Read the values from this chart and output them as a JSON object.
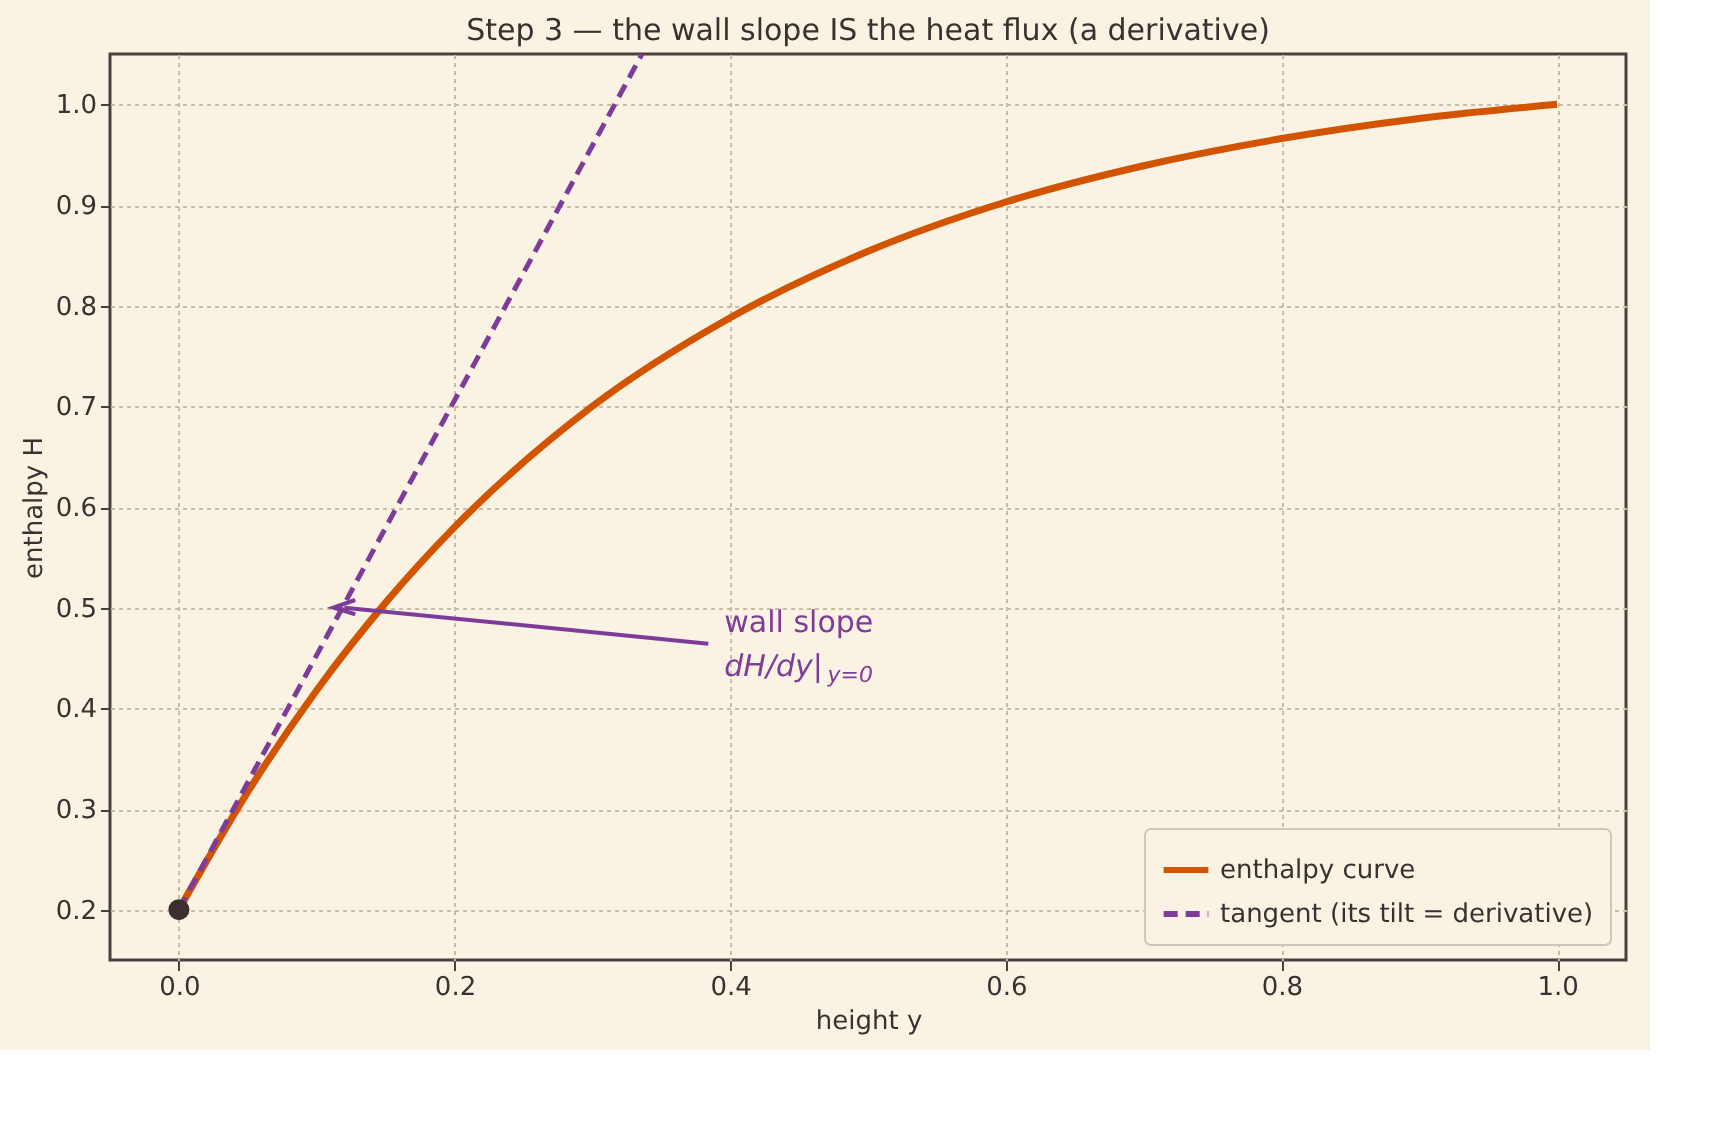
{
  "chart_data": {
    "type": "line",
    "title": "Step 3 — the wall slope IS the heat flux (a derivative)",
    "xlabel": "height  y",
    "ylabel": "enthalpy  H",
    "xlim": [
      -0.05,
      1.05
    ],
    "ylim": [
      0.15,
      1.05
    ],
    "xticks": [
      {
        "value": 0,
        "label": "0.0"
      },
      {
        "value": 0.2,
        "label": "0.2"
      },
      {
        "value": 0.4,
        "label": "0.4"
      },
      {
        "value": 0.6,
        "label": "0.6"
      },
      {
        "value": 0.8,
        "label": "0.8"
      },
      {
        "value": 1,
        "label": "1.0"
      }
    ],
    "yticks": [
      {
        "value": 0.2,
        "label": "0.2"
      },
      {
        "value": 0.3,
        "label": "0.3"
      },
      {
        "value": 0.4,
        "label": "0.4"
      },
      {
        "value": 0.5,
        "label": "0.5"
      },
      {
        "value": 0.6,
        "label": "0.6"
      },
      {
        "value": 0.7,
        "label": "0.7"
      },
      {
        "value": 0.8,
        "label": "0.8"
      },
      {
        "value": 0.9,
        "label": "0.9"
      },
      {
        "value": 1,
        "label": "1.0"
      }
    ],
    "grid": true,
    "legend": "bottom right",
    "marker": "none",
    "series": [
      {
        "name": "enthalpy curve",
        "type": "line",
        "color": "#d35400",
        "line_style": "solid",
        "x": [
          0,
          0.05,
          0.1,
          0.15,
          0.2,
          0.3,
          0.4,
          0.5,
          0.6,
          0.7,
          0.8,
          0.9,
          1.0
        ],
        "values": [
          0.2,
          0.317,
          0.418,
          0.505,
          0.58,
          0.7,
          0.788,
          0.854,
          0.903,
          0.939,
          0.966,
          0.986,
          1.0
        ]
      },
      {
        "name": "tangent (its tilt = derivative)",
        "type": "line",
        "color": "#7d3c98",
        "line_style": "dashed",
        "x": [
          0,
          0.336
        ],
        "values": [
          0.2,
          1.05
        ]
      },
      {
        "type": "scatter",
        "color": "#3b2f2f",
        "marker": "circle",
        "x": [
          0
        ],
        "values": [
          0.2
        ]
      }
    ],
    "annotations": [
      {
        "text": "wall slope\ndH/dy|$_{y=0}$",
        "x": 0.12,
        "y": 0.5
      }
    ]
  }
}
